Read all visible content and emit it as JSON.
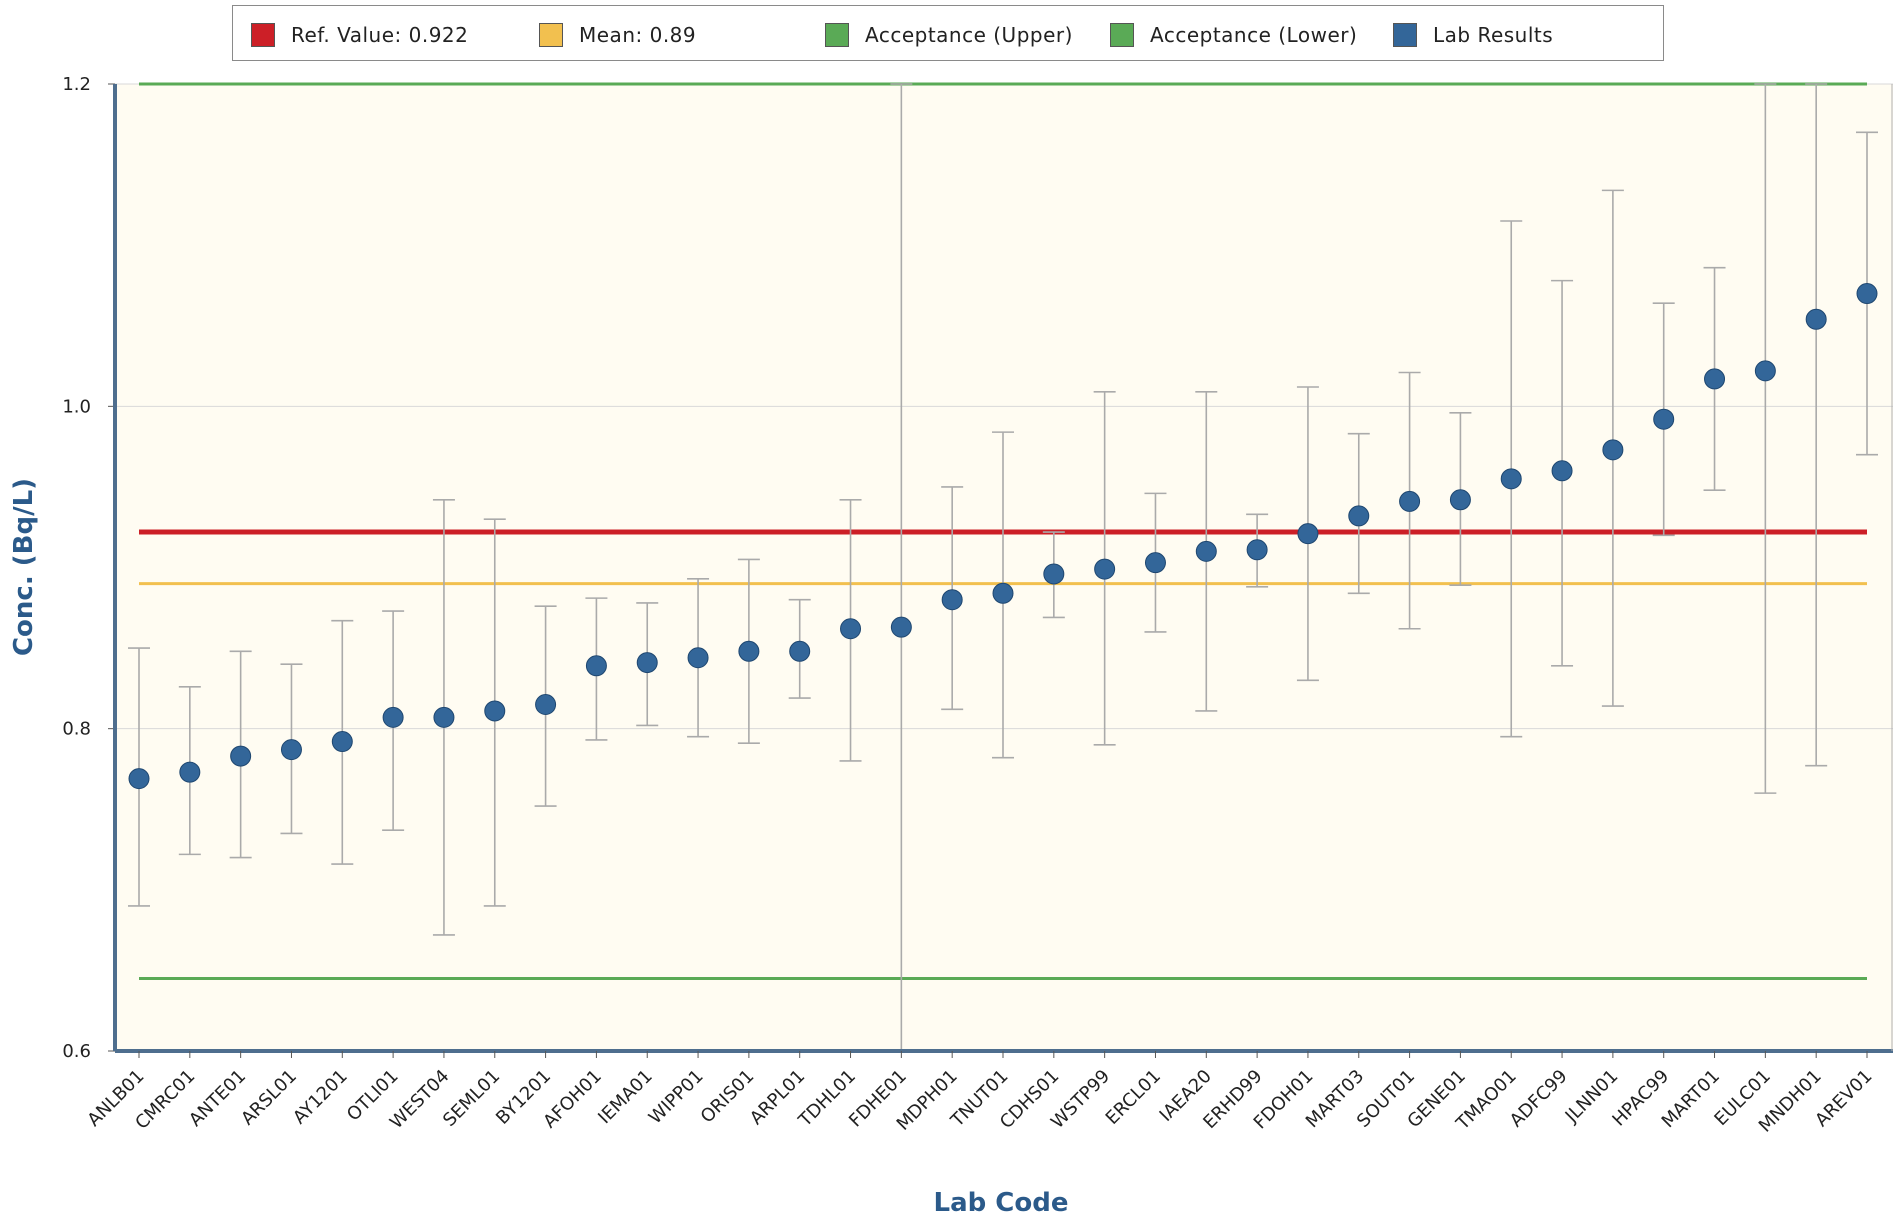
{
  "legend": [
    {
      "label": "Ref. Value: 0.922",
      "color": "#cc1f27"
    },
    {
      "label": "Mean: 0.89",
      "color": "#f2c04f"
    },
    {
      "label": "Acceptance (Upper)",
      "color": "#5aaa56"
    },
    {
      "label": "Acceptance (Lower)",
      "color": "#5aaa56"
    },
    {
      "label": "Lab Results",
      "color": "#336699"
    }
  ],
  "chart_data": {
    "type": "scatter",
    "title": "",
    "xlabel": "Lab Code",
    "ylabel": "Conc. (Bq/L)",
    "ylim": [
      0.6,
      1.2
    ],
    "yticks": [
      "0.6",
      "0.8",
      "1.0",
      "1.2"
    ],
    "grid": true,
    "legend_position": "top",
    "ref_value": 0.922,
    "mean": 0.89,
    "acceptance_upper": 1.2,
    "acceptance_lower": 0.645,
    "colors": {
      "ref": "#cc1f27",
      "mean": "#f2c04f",
      "acceptance": "#5aaa56",
      "points": "#336699",
      "plot_bg": "#fffcf2",
      "error_bar": "#aaaaaa"
    },
    "categories": [
      "ANLB01",
      "CMRC01",
      "ANTE01",
      "ARSL01",
      "AY1201",
      "OTLI01",
      "WEST04",
      "SEML01",
      "BY1201",
      "AFOH01",
      "IEMA01",
      "WIPP01",
      "ORIS01",
      "ARPL01",
      "TDHL01",
      "FDHE01",
      "MDPH01",
      "TNUT01",
      "CDHS01",
      "WSTP99",
      "ERCL01",
      "IAEA20",
      "ERHD99",
      "FDOH01",
      "MART03",
      "SOUT01",
      "GENE01",
      "TMAO01",
      "ADFC99",
      "JLNN01",
      "HPAC99",
      "MART01",
      "EULC01",
      "MNDH01",
      "AREV01"
    ],
    "values": [
      0.769,
      0.773,
      0.783,
      0.787,
      0.792,
      0.807,
      0.807,
      0.811,
      0.815,
      0.839,
      0.841,
      0.844,
      0.848,
      0.848,
      0.862,
      0.863,
      0.88,
      0.884,
      0.896,
      0.899,
      0.903,
      0.91,
      0.911,
      0.921,
      0.932,
      0.941,
      0.942,
      0.955,
      0.96,
      0.973,
      0.992,
      1.017,
      1.022,
      1.054,
      1.07
    ],
    "error_low": [
      0.69,
      0.722,
      0.72,
      0.735,
      0.716,
      0.737,
      0.672,
      0.69,
      0.752,
      0.793,
      0.802,
      0.795,
      0.791,
      0.819,
      0.78,
      0.6,
      0.812,
      0.782,
      0.869,
      0.79,
      0.86,
      0.811,
      0.888,
      0.83,
      0.884,
      0.862,
      0.889,
      0.795,
      0.839,
      0.814,
      0.92,
      0.948,
      0.76,
      0.777,
      0.97
    ],
    "error_high": [
      0.85,
      0.826,
      0.848,
      0.84,
      0.867,
      0.873,
      0.942,
      0.93,
      0.876,
      0.881,
      0.878,
      0.893,
      0.905,
      0.88,
      0.942,
      1.2,
      0.95,
      0.984,
      0.922,
      1.009,
      0.946,
      1.009,
      0.933,
      1.012,
      0.983,
      1.021,
      0.996,
      1.115,
      1.078,
      1.134,
      1.064,
      1.086,
      1.2,
      1.2,
      1.17
    ]
  }
}
